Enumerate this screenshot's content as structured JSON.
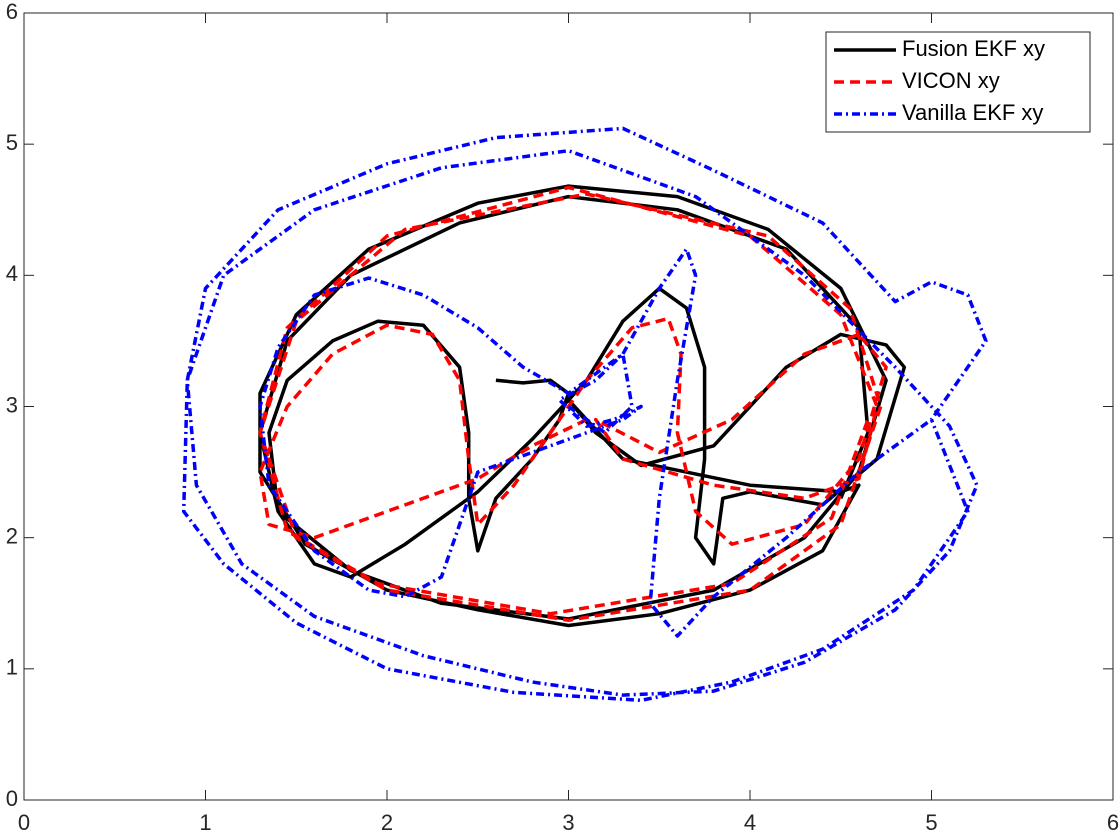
{
  "chart_data": {
    "type": "line",
    "xlim": [
      0,
      6
    ],
    "ylim": [
      0,
      6
    ],
    "xticks": [
      0,
      1,
      2,
      3,
      4,
      5,
      6
    ],
    "yticks": [
      0,
      1,
      2,
      3,
      4,
      5,
      6
    ],
    "legend": "top-right",
    "series": [
      {
        "name": "Fusion EKF xy",
        "color": "#000000",
        "style": "solid",
        "x": [
          2.6,
          2.75,
          2.9,
          3.0,
          2.95,
          2.8,
          2.6,
          2.5,
          2.45,
          2.45,
          2.4,
          2.2,
          1.95,
          1.7,
          1.45,
          1.35,
          1.4,
          1.6,
          1.8,
          2.1,
          2.5,
          2.8,
          3.1,
          3.3,
          3.5,
          3.65,
          3.75,
          3.75,
          3.7,
          3.8,
          3.85,
          4.0,
          4.4,
          4.7,
          4.85,
          4.75,
          4.5,
          4.2,
          3.8,
          3.4,
          3.15,
          3.0,
          3.3,
          4.0,
          4.5,
          4.6,
          4.4,
          4.0,
          3.5,
          3.0,
          2.5,
          2.0,
          1.55,
          1.3,
          1.3,
          1.5,
          1.9,
          2.5,
          3.0,
          3.6,
          4.1,
          4.5,
          4.75,
          4.6,
          4.3,
          3.8,
          3.0,
          2.3,
          1.8,
          1.4,
          1.3,
          1.45,
          1.8,
          2.4,
          3.0,
          3.6,
          4.2,
          4.6,
          4.65,
          4.5
        ],
        "values": [
          3.2,
          3.18,
          3.2,
          3.1,
          2.9,
          2.6,
          2.3,
          1.9,
          2.3,
          2.8,
          3.3,
          3.62,
          3.65,
          3.5,
          3.2,
          2.8,
          2.2,
          1.8,
          1.7,
          1.95,
          2.35,
          2.75,
          3.2,
          3.65,
          3.9,
          3.75,
          3.3,
          2.6,
          2.0,
          1.8,
          2.3,
          2.35,
          2.25,
          2.6,
          3.3,
          3.47,
          3.55,
          3.3,
          2.7,
          2.55,
          2.8,
          3.05,
          2.6,
          2.4,
          2.35,
          2.4,
          1.9,
          1.6,
          1.42,
          1.33,
          1.45,
          1.6,
          1.95,
          2.5,
          3.1,
          3.7,
          4.2,
          4.55,
          4.68,
          4.6,
          4.35,
          3.9,
          3.2,
          2.5,
          2.0,
          1.6,
          1.38,
          1.5,
          1.75,
          2.2,
          2.8,
          3.5,
          4.0,
          4.4,
          4.6,
          4.5,
          4.2,
          3.6,
          2.8,
          2.3
        ]
      },
      {
        "name": "VICON xy",
        "color": "#ff0000",
        "style": "dashed",
        "x": [
          3.1,
          2.8,
          2.5,
          2.0,
          1.6,
          1.35,
          1.3,
          1.45,
          1.7,
          2.0,
          2.25,
          2.4,
          2.45,
          2.5,
          2.7,
          2.9,
          3.1,
          3.35,
          3.55,
          3.62,
          3.6,
          3.7,
          3.9,
          4.3,
          4.6,
          4.75,
          4.6,
          4.3,
          3.9,
          3.5,
          3.15,
          3.3,
          3.8,
          4.3,
          4.6,
          4.7,
          4.5,
          4.0,
          3.0,
          2.0,
          1.45,
          1.3,
          1.5,
          2.0,
          3.0,
          4.0,
          4.5,
          4.72,
          4.55,
          4.1,
          3.1,
          2.1,
          1.5,
          1.3,
          1.45,
          1.95,
          2.9,
          3.9,
          4.45,
          4.65
        ],
        "values": [
          2.9,
          2.7,
          2.45,
          2.2,
          2.0,
          2.1,
          2.5,
          3.0,
          3.4,
          3.62,
          3.55,
          3.2,
          2.6,
          2.1,
          2.4,
          2.8,
          3.2,
          3.6,
          3.67,
          3.4,
          2.8,
          2.2,
          1.95,
          2.1,
          2.6,
          3.3,
          3.55,
          3.4,
          2.9,
          2.65,
          2.9,
          2.6,
          2.4,
          2.3,
          2.45,
          3.0,
          3.7,
          4.3,
          4.67,
          4.3,
          3.6,
          2.8,
          2.0,
          1.6,
          1.37,
          1.6,
          2.1,
          3.0,
          3.75,
          4.3,
          4.62,
          4.35,
          3.65,
          2.8,
          2.05,
          1.65,
          1.42,
          1.65,
          2.15,
          2.9
        ]
      },
      {
        "name": "Vanilla EKF xy",
        "color": "#0000ff",
        "style": "dashdot",
        "x": [
          3.0,
          3.2,
          3.35,
          3.3,
          3.15,
          2.95,
          3.1,
          3.25,
          3.4,
          3.3,
          3.1,
          2.9,
          2.7,
          2.5,
          2.4,
          2.3,
          2.1,
          1.9,
          1.6,
          1.35,
          1.3,
          1.4,
          1.6,
          1.9,
          2.2,
          2.5,
          2.75,
          3.0,
          3.3,
          3.5,
          3.65,
          3.7,
          3.6,
          3.5,
          3.45,
          3.6,
          3.8,
          4.2,
          4.6,
          5.0,
          5.3,
          5.2,
          5.0,
          4.8,
          4.4,
          3.8,
          3.3,
          2.6,
          2.0,
          1.4,
          1.0,
          0.9,
          0.95,
          1.2,
          1.6,
          2.2,
          2.8,
          3.3,
          3.8,
          4.3,
          4.8,
          5.1,
          5.25,
          5.1,
          4.8,
          4.3,
          3.7,
          3.0,
          2.3,
          1.6,
          1.1,
          0.9,
          0.88,
          1.1,
          1.5,
          2.0,
          2.7,
          3.4,
          3.9,
          4.4,
          4.9,
          5.2,
          5.0
        ],
        "values": [
          3.0,
          2.8,
          3.0,
          3.4,
          3.2,
          3.05,
          2.85,
          2.9,
          3.0,
          2.9,
          2.8,
          2.7,
          2.6,
          2.5,
          2.1,
          1.7,
          1.55,
          1.6,
          1.9,
          2.4,
          3.0,
          3.45,
          3.85,
          3.98,
          3.85,
          3.6,
          3.3,
          3.1,
          3.4,
          3.9,
          4.2,
          4.0,
          3.2,
          2.3,
          1.5,
          1.25,
          1.55,
          2.0,
          2.5,
          2.9,
          3.5,
          3.85,
          3.95,
          3.8,
          4.4,
          4.8,
          5.12,
          5.05,
          4.85,
          4.5,
          3.9,
          3.2,
          2.4,
          1.8,
          1.4,
          1.1,
          0.9,
          0.8,
          0.83,
          1.05,
          1.45,
          1.9,
          2.4,
          2.85,
          3.3,
          4.0,
          4.6,
          4.95,
          4.82,
          4.5,
          4.0,
          3.2,
          2.2,
          1.8,
          1.35,
          1.0,
          0.82,
          0.76,
          0.9,
          1.15,
          1.6,
          2.2,
          2.9
        ]
      }
    ]
  }
}
